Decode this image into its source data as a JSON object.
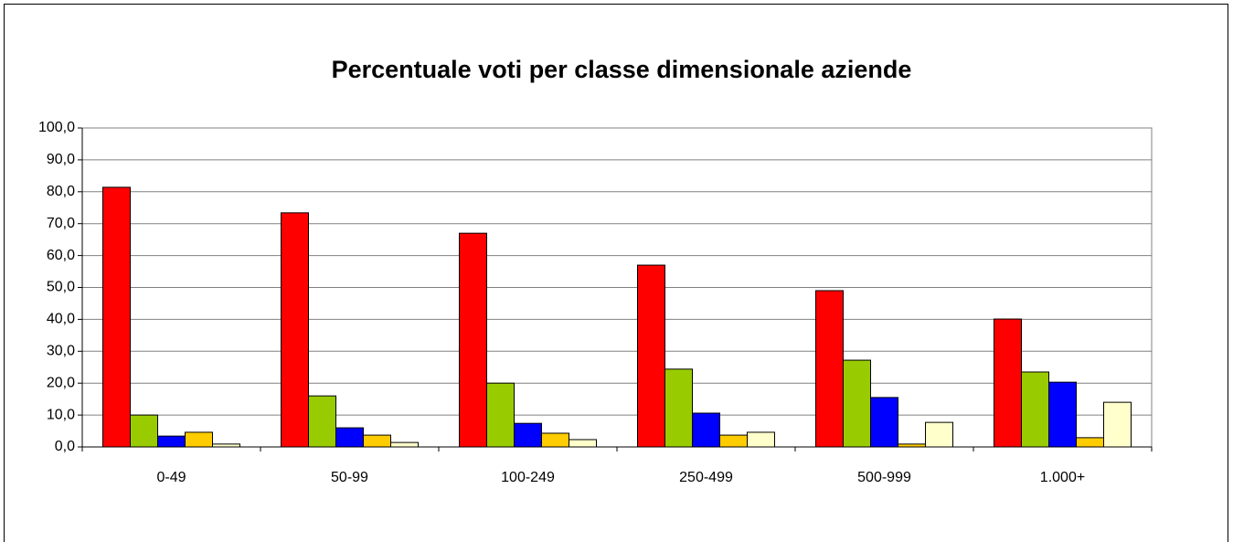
{
  "chart_data": {
    "type": "bar",
    "title": "Percentuale voti per classe dimensionale aziende",
    "categories": [
      "0-49",
      "50-99",
      "100-249",
      "250-499",
      "500-999",
      "1.000+"
    ],
    "series": [
      {
        "color": "#ff0000",
        "values": [
          81.4,
          73.4,
          67.0,
          57.0,
          49.0,
          40.1
        ]
      },
      {
        "color": "#99cc00",
        "values": [
          10.0,
          16.0,
          20.0,
          24.4,
          27.2,
          23.5
        ]
      },
      {
        "color": "#0000ff",
        "values": [
          3.4,
          6.0,
          7.4,
          10.6,
          15.5,
          20.3
        ]
      },
      {
        "color": "#ffcc00",
        "values": [
          4.6,
          3.7,
          4.3,
          3.7,
          0.9,
          2.9
        ]
      },
      {
        "color": "#ffffcc",
        "values": [
          0.9,
          1.4,
          2.3,
          4.6,
          7.7,
          14.0
        ]
      }
    ],
    "ylim": [
      0,
      100
    ],
    "yticks": [
      {
        "value": 0,
        "label": "0,0"
      },
      {
        "value": 10,
        "label": "10,0"
      },
      {
        "value": 20,
        "label": "20,0"
      },
      {
        "value": 30,
        "label": "30,0"
      },
      {
        "value": 40,
        "label": "40,0"
      },
      {
        "value": 50,
        "label": "50,0"
      },
      {
        "value": 60,
        "label": "60,0"
      },
      {
        "value": 70,
        "label": "70,0"
      },
      {
        "value": 80,
        "label": "80,0"
      },
      {
        "value": 90,
        "label": "90,0"
      },
      {
        "value": 100,
        "label": "100,0"
      }
    ],
    "grid": true
  }
}
